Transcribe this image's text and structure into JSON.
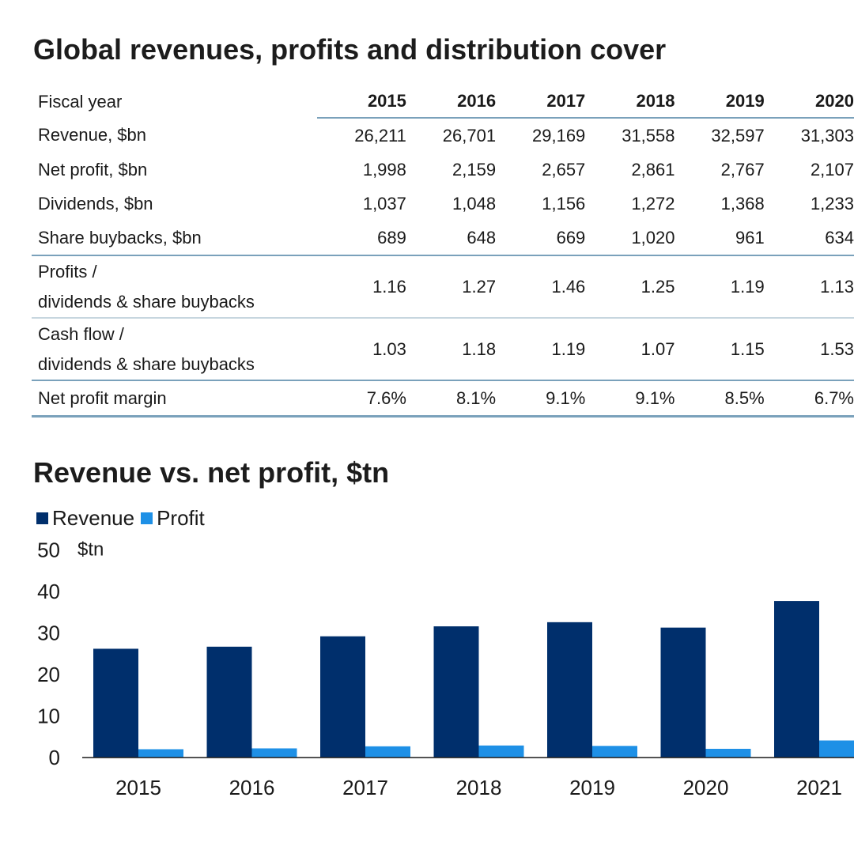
{
  "table": {
    "title": "Global revenues, profits and distribution cover",
    "header_label": "Fiscal year",
    "years": [
      "2015",
      "2016",
      "2017",
      "2018",
      "2019",
      "2020"
    ],
    "rows": [
      {
        "label": "Revenue, $bn",
        "values": [
          "26,211",
          "26,701",
          "29,169",
          "31,558",
          "32,597",
          "31,303"
        ]
      },
      {
        "label": "Net profit, $bn",
        "values": [
          "1,998",
          "2,159",
          "2,657",
          "2,861",
          "2,767",
          "2,107"
        ]
      },
      {
        "label": "Dividends, $bn",
        "values": [
          "1,037",
          "1,048",
          "1,156",
          "1,272",
          "1,368",
          "1,233"
        ]
      },
      {
        "label": "Share buybacks, $bn",
        "values": [
          "689",
          "648",
          "669",
          "1,020",
          "961",
          "634"
        ]
      },
      {
        "label_line1": "Profits /",
        "label_line2": "dividends & share buybacks",
        "values": [
          "1.16",
          "1.27",
          "1.46",
          "1.25",
          "1.19",
          "1.13"
        ]
      },
      {
        "label_line1": "Cash flow /",
        "label_line2": "dividends & share buybacks",
        "values": [
          "1.03",
          "1.18",
          "1.19",
          "1.07",
          "1.15",
          "1.53"
        ]
      },
      {
        "label": "Net profit margin",
        "values": [
          "7.6%",
          "8.1%",
          "9.1%",
          "9.1%",
          "8.5%",
          "6.7%"
        ]
      }
    ]
  },
  "chart_data": {
    "type": "bar",
    "title": "Revenue vs. net profit, $tn",
    "unit_label": "$tn",
    "categories": [
      "2015",
      "2016",
      "2017",
      "2018",
      "2019",
      "2020",
      "2021"
    ],
    "series": [
      {
        "name": "Revenue",
        "color": "#002f6c",
        "values": [
          26.2,
          26.7,
          29.2,
          31.6,
          32.6,
          31.3,
          37.7
        ]
      },
      {
        "name": "Profit",
        "color": "#1e90e6",
        "values": [
          2.0,
          2.2,
          2.7,
          2.9,
          2.8,
          2.1,
          4.1
        ]
      }
    ],
    "ylim": [
      0,
      50
    ],
    "yticks": [
      0,
      10,
      20,
      30,
      40,
      50
    ],
    "grid": false,
    "legend_position": "top-left"
  }
}
